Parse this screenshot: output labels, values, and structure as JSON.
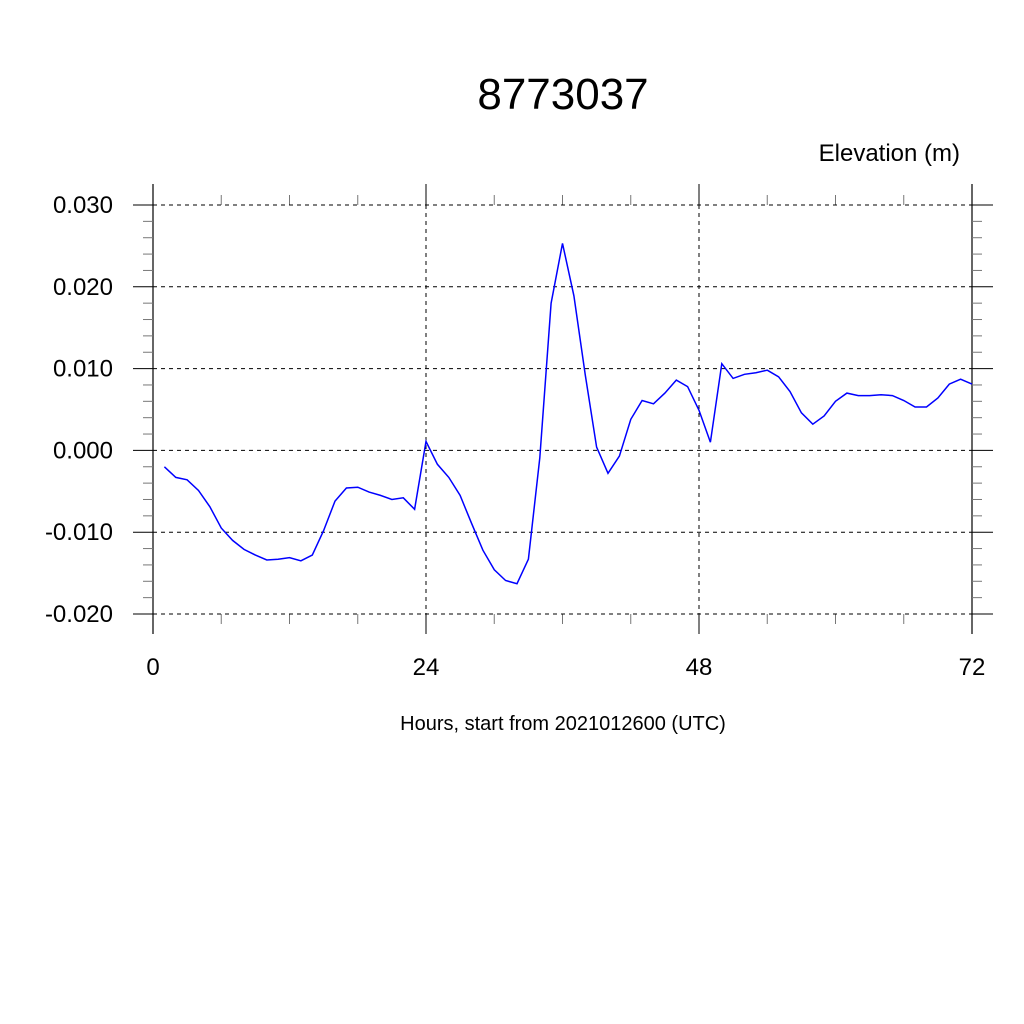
{
  "chart_data": {
    "type": "line",
    "title": "8773037",
    "subtitle": "Elevation (m)",
    "xlabel": "Hours, start from 2021012600 (UTC)",
    "ylabel": "",
    "xlim": [
      0,
      72
    ],
    "ylim": [
      -0.02,
      0.03
    ],
    "x_ticks": [
      "0",
      "24",
      "48",
      "72"
    ],
    "y_ticks": [
      "-0.020",
      "-0.010",
      "0.000",
      "0.010",
      "0.020",
      "0.030"
    ],
    "grid": true,
    "line_color": "#0000ff",
    "x": [
      1,
      2,
      3,
      4,
      5,
      6,
      7,
      8,
      9,
      10,
      11,
      12,
      13,
      14,
      15,
      16,
      17,
      18,
      19,
      20,
      21,
      22,
      23,
      24,
      25,
      26,
      27,
      28,
      29,
      30,
      31,
      32,
      33,
      34,
      35,
      36,
      37,
      38,
      39,
      40,
      41,
      42,
      43,
      44,
      45,
      46,
      47,
      48,
      49,
      50,
      51,
      52,
      53,
      54,
      55,
      56,
      57,
      58,
      59,
      60,
      61,
      62,
      63,
      64,
      65,
      66,
      67,
      68,
      69,
      70,
      71,
      72
    ],
    "y": [
      -0.002,
      -0.0033,
      -0.0036,
      -0.0049,
      -0.0069,
      -0.0095,
      -0.011,
      -0.0121,
      -0.0128,
      -0.0134,
      -0.0133,
      -0.0131,
      -0.0135,
      -0.0128,
      -0.0098,
      -0.0062,
      -0.0046,
      -0.0045,
      -0.0051,
      -0.0055,
      -0.006,
      -0.0058,
      -0.0072,
      0.0011,
      -0.0017,
      -0.0033,
      -0.0055,
      -0.0089,
      -0.0122,
      -0.0146,
      -0.0159,
      -0.0163,
      -0.0133,
      -0.0009,
      0.018,
      0.0253,
      0.0189,
      0.0092,
      0.0004,
      -0.0028,
      -0.0007,
      0.0038,
      0.0061,
      0.0057,
      0.007,
      0.0086,
      0.0078,
      0.0049,
      0.001,
      0.0106,
      0.0088,
      0.0093,
      0.0095,
      0.0098,
      0.009,
      0.0072,
      0.0046,
      0.0032,
      0.0042,
      0.006,
      0.007,
      0.0067,
      0.0067,
      0.0068,
      0.0067,
      0.0061,
      0.0053,
      0.0053,
      0.0064,
      0.0081,
      0.0087,
      0.0081
    ]
  }
}
